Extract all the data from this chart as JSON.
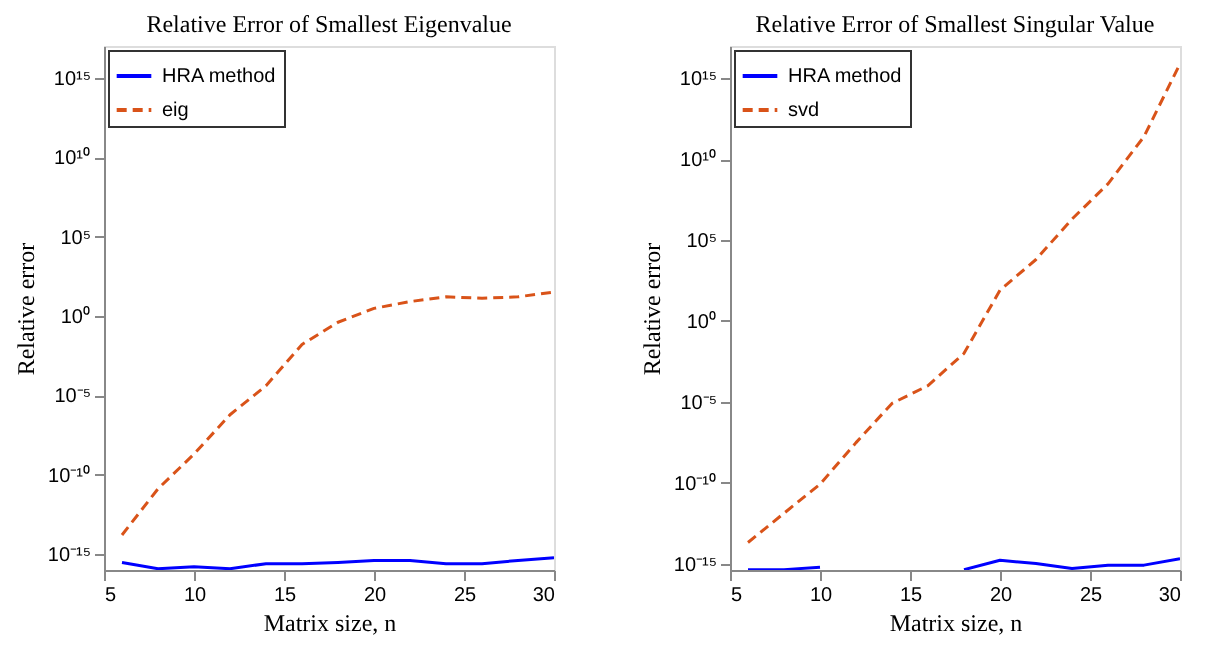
{
  "chart_data": [
    {
      "type": "line",
      "title": "Relative Error of Smallest Eigenvalue",
      "xlabel": "Matrix size, n",
      "ylabel": "Relative error",
      "x": [
        6,
        8,
        10,
        12,
        14,
        16,
        18,
        20,
        22,
        24,
        26,
        28,
        30
      ],
      "series": [
        {
          "name": "HRA method",
          "color": "#0000ff",
          "line_style": "solid",
          "values": [
            3e-16,
            1.2e-16,
            1.6e-16,
            1.2e-16,
            2.5e-16,
            2.5e-16,
            3e-16,
            4e-16,
            4e-16,
            2.5e-16,
            2.5e-16,
            4e-16,
            6e-16
          ]
        },
        {
          "name": "eig",
          "color": "#d95319",
          "line_style": "dashed",
          "values": [
            1.6e-14,
            1.3e-11,
            2e-09,
            6e-07,
            4e-05,
            0.016,
            0.4,
            3,
            8,
            16,
            13,
            16,
            32
          ]
        }
      ],
      "xlim": [
        5,
        30
      ],
      "xticks": [
        5,
        10,
        15,
        20,
        25,
        30
      ],
      "ylim": [
        1e-16,
        1e+17
      ],
      "yticks": [
        {
          "value": 1e-15,
          "label": "10⁻¹⁵"
        },
        {
          "value": 1e-10,
          "label": "10⁻¹⁰"
        },
        {
          "value": 1e-05,
          "label": "10⁻⁵"
        },
        {
          "value": 1,
          "label": "10⁰"
        },
        {
          "value": 100000.0,
          "label": "10⁵"
        },
        {
          "value": 10000000000.0,
          "label": "10¹⁰"
        },
        {
          "value": 1000000000000000.0,
          "label": "10¹⁵"
        }
      ],
      "log": "y",
      "grid": false,
      "legend": "top left"
    },
    {
      "type": "line",
      "title": "Relative Error of Smallest Singular Value",
      "xlabel": "Matrix size, n",
      "ylabel": "Relative error",
      "x": [
        6,
        8,
        10,
        12,
        14,
        16,
        18,
        20,
        22,
        24,
        26,
        28,
        30
      ],
      "series": [
        {
          "name": "HRA method",
          "color": "#0000ff",
          "line_style": "solid",
          "values": [
            4.2e-16,
            4.2e-16,
            6e-16,
            null,
            null,
            null,
            4.2e-16,
            1.6e-15,
            1e-15,
            5e-16,
            8e-16,
            8e-16,
            2e-15
          ]
        },
        {
          "name": "svd",
          "color": "#d95319",
          "line_style": "dashed",
          "values": [
            2e-14,
            1.3e-12,
            8e-11,
            3e-08,
            8e-06,
            0.0001,
            0.01,
            80,
            6300,
            2000000.0,
            300000000.0,
            250000000000.0,
            8000000000000000.0
          ]
        }
      ],
      "xlim": [
        5,
        30
      ],
      "xticks": [
        5,
        10,
        15,
        20,
        25,
        30
      ],
      "ylim": [
        4e-16,
        1e+17
      ],
      "yticks": [
        {
          "value": 1e-15,
          "label": "10⁻¹⁵"
        },
        {
          "value": 1e-10,
          "label": "10⁻¹⁰"
        },
        {
          "value": 1e-05,
          "label": "10⁻⁵"
        },
        {
          "value": 1,
          "label": "10⁰"
        },
        {
          "value": 100000.0,
          "label": "10⁵"
        },
        {
          "value": 10000000000.0,
          "label": "10¹⁰"
        },
        {
          "value": 1000000000000000.0,
          "label": "10¹⁵"
        }
      ],
      "log": "y",
      "grid": false,
      "legend": "top left"
    }
  ]
}
